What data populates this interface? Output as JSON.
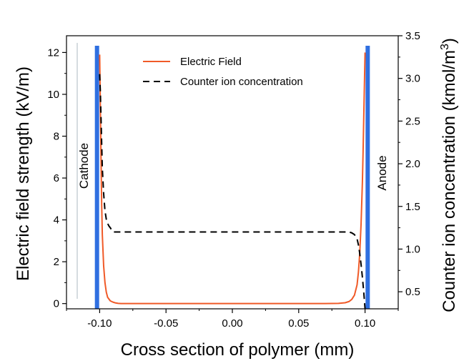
{
  "chart_data": {
    "type": "line",
    "title": "",
    "xlabel": "Cross section of polymer (mm)",
    "ylabel_left": "Electric field strength (kV/m)",
    "ylabel_right": "Counter ion concentration (kmol/m",
    "ylabel_right_sup": "3",
    "ylabel_right_close": ")",
    "xlim": [
      -0.125,
      0.125
    ],
    "ylim_left": [
      -0.25,
      12.8
    ],
    "ylim_right": [
      0.3,
      3.5
    ],
    "x_ticks": [
      -0.1,
      -0.05,
      0.0,
      0.05,
      0.1
    ],
    "x_tick_labels": [
      "-0.10",
      "-0.05",
      "0.00",
      "0.05",
      "0.10"
    ],
    "y_left_ticks": [
      0,
      2,
      4,
      6,
      8,
      10,
      12
    ],
    "y_left_tick_labels": [
      "0",
      "2",
      "4",
      "6",
      "8",
      "10",
      "12"
    ],
    "y_right_ticks": [
      0.5,
      1.0,
      1.5,
      2.0,
      2.5,
      3.0,
      3.5
    ],
    "y_right_tick_labels": [
      "0.5",
      "1.0",
      "1.5",
      "2.0",
      "2.5",
      "3.0",
      "3.5"
    ],
    "legend_position": "top-center",
    "grid": false,
    "series": [
      {
        "name": "Electric Field",
        "axis": "left",
        "color": "#f05a28",
        "style": "solid",
        "x": [
          -0.1,
          -0.0995,
          -0.099,
          -0.0985,
          -0.098,
          -0.097,
          -0.096,
          -0.095,
          -0.094,
          -0.092,
          -0.09,
          -0.088,
          -0.086,
          -0.084,
          -0.08,
          -0.07,
          -0.05,
          0.0,
          0.05,
          0.07,
          0.08,
          0.085,
          0.088,
          0.09,
          0.092,
          0.094,
          0.095,
          0.096,
          0.097,
          0.098,
          0.0985,
          0.099,
          0.0995,
          0.1
        ],
        "y": [
          11.9,
          9.5,
          7.0,
          4.8,
          3.3,
          1.8,
          1.0,
          0.55,
          0.3,
          0.13,
          0.07,
          0.03,
          0.01,
          0.0,
          0.0,
          0.0,
          0.0,
          0.0,
          0.0,
          0.0,
          0.01,
          0.04,
          0.1,
          0.2,
          0.4,
          0.9,
          1.5,
          2.4,
          3.8,
          5.8,
          7.2,
          8.8,
          10.4,
          12.0
        ]
      },
      {
        "name": "Counter ion concentration",
        "axis": "right",
        "color": "#000000",
        "style": "dashed",
        "x": [
          -0.1,
          -0.0995,
          -0.099,
          -0.0985,
          -0.098,
          -0.097,
          -0.096,
          -0.095,
          -0.094,
          -0.093,
          -0.092,
          -0.09,
          -0.088,
          -0.08,
          -0.05,
          0.0,
          0.05,
          0.08,
          0.088,
          0.09,
          0.092,
          0.094,
          0.095,
          0.096,
          0.097,
          0.098,
          0.099,
          0.0995,
          0.1
        ],
        "y": [
          3.05,
          2.85,
          2.55,
          2.25,
          1.95,
          1.65,
          1.45,
          1.35,
          1.3,
          1.27,
          1.25,
          1.2,
          1.2,
          1.2,
          1.2,
          1.2,
          1.2,
          1.2,
          1.2,
          1.19,
          1.17,
          1.12,
          1.05,
          0.95,
          0.82,
          0.67,
          0.5,
          0.4,
          0.3
        ]
      }
    ],
    "electrodes": [
      {
        "label": "Cathode",
        "x": -0.102,
        "color": "#2f6fe0"
      },
      {
        "label": "Anode",
        "x": 0.102,
        "color": "#2f6fe0"
      }
    ]
  }
}
